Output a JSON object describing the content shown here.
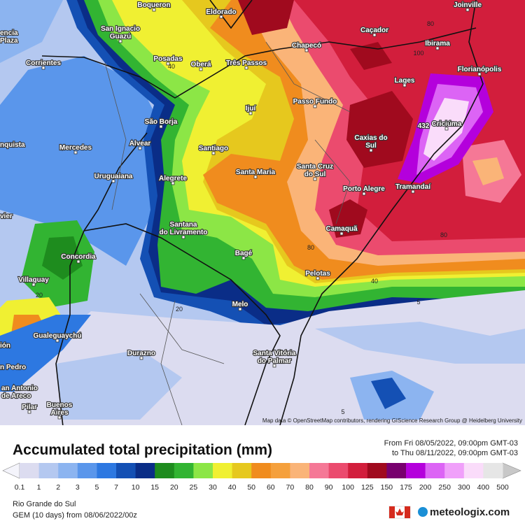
{
  "map": {
    "places": [
      "Boqueron",
      "Eldorado",
      "Joinville",
      [
        "San Ignacio",
        "Guazú"
      ],
      "Caçador",
      "Ibirama",
      [
        "encia",
        "Plaza"
      ],
      "Posadas",
      "Oberá",
      "Três Passos",
      "Chapecó",
      "Corrientes",
      "Lages",
      "Florianópolis",
      "Passo Fundo",
      "Ijuí",
      "São Borja",
      "Criciúma",
      [
        "Caxias do",
        "Sul"
      ],
      "nquista",
      "Mercedes",
      "Alvear",
      "Santiago",
      [
        "Santa Cruz",
        "do Sul"
      ],
      "Santa Maria",
      "Uruguaiana",
      "Alegrete",
      "Tramandaí",
      "Porto Alegre",
      "vier",
      [
        "Santana",
        "do Livramento"
      ],
      "Camaquã",
      "Concordia",
      "Bagé",
      "Pelotas",
      "Villaguay",
      "Melo",
      "Gualeguaychú",
      "ión",
      "Durazno",
      [
        "Santa Vitória",
        "do Palmar"
      ],
      "n Pedro",
      [
        "an Antonio",
        "de Areco"
      ],
      "Pilar",
      [
        "Buenos",
        "Aires"
      ]
    ],
    "contour_labels": [
      "80",
      "100",
      "40",
      "432",
      "80",
      "80",
      "40",
      "20",
      "5",
      "5",
      "20"
    ],
    "attribution": "Map data © OpenStreetMap contributors, rendering GIScience Research Group @ Heidelberg University"
  },
  "title": "Accumulated total precipitation (mm)",
  "period": [
    "From Fri 08/05/2022, 09:00pm GMT-03",
    "to Thu 08/11/2022, 09:00pm GMT-03"
  ],
  "legend": {
    "labels": [
      "0.1",
      "1",
      "2",
      "3",
      "5",
      "7",
      "10",
      "15",
      "20",
      "25",
      "30",
      "40",
      "50",
      "60",
      "70",
      "80",
      "90",
      "100",
      "125",
      "150",
      "175",
      "200",
      "250",
      "300",
      "400",
      "500"
    ],
    "colors": [
      "#dcdcf0",
      "#b4c8f0",
      "#8cb4f0",
      "#5a96eb",
      "#2d78e1",
      "#1450b4",
      "#0a2d87",
      "#1e8c1e",
      "#32b432",
      "#8ce646",
      "#f0f032",
      "#e6c81e",
      "#f08c1e",
      "#f5a03c",
      "#fab478",
      "#f57896",
      "#eb4b6e",
      "#d21e3c",
      "#a00a1e",
      "#78006e",
      "#b400dc",
      "#dc64f5",
      "#f0a0fa",
      "#fadcfa",
      "#e6e6e6"
    ]
  },
  "footer": {
    "region": "Rio Grande do Sul",
    "model": "GEM (10 days) from 08/06/2022/00z",
    "brand": "meteologix.com"
  }
}
